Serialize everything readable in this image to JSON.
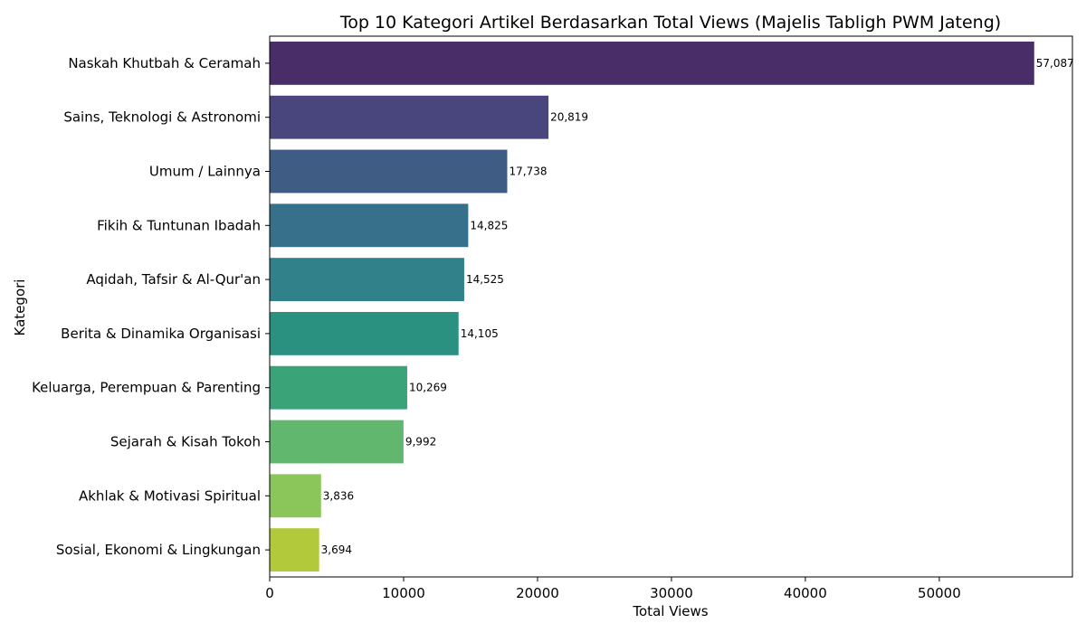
{
  "chart_data": {
    "type": "bar",
    "orientation": "horizontal",
    "title": "Top 10 Kategori Artikel Berdasarkan Total Views (Majelis Tabligh PWM Jateng)",
    "xlabel": "Total Views",
    "ylabel": "Kategori",
    "categories": [
      "Naskah Khutbah & Ceramah",
      "Sains, Teknologi & Astronomi",
      "Umum / Lainnya",
      "Fikih & Tuntunan Ibadah",
      "Aqidah, Tafsir & Al-Qur'an",
      "Berita & Dinamika Organisasi",
      "Keluarga, Perempuan & Parenting",
      "Sejarah & Kisah Tokoh",
      "Akhlak & Motivasi Spiritual",
      "Sosial, Ekonomi & Lingkungan"
    ],
    "values": [
      57087,
      20819,
      17738,
      14825,
      14525,
      14105,
      10269,
      9992,
      3836,
      3694
    ],
    "value_labels": [
      "57,087",
      "20,819",
      "17,738",
      "14,825",
      "14,525",
      "14,105",
      "10,269",
      "9,992",
      "3,836",
      "3,694"
    ],
    "colors": [
      "#482D69",
      "#48467D",
      "#3F5C85",
      "#37708A",
      "#30818A",
      "#2A9181",
      "#3BA378",
      "#61B76E",
      "#8AC65A",
      "#B1C93B"
    ],
    "xlim": [
      0,
      59941
    ],
    "xticks": [
      0,
      10000,
      20000,
      30000,
      40000,
      50000
    ],
    "xtick_labels": [
      "0",
      "10000",
      "20000",
      "30000",
      "40000",
      "50000"
    ],
    "grid": false,
    "legend": false
  }
}
